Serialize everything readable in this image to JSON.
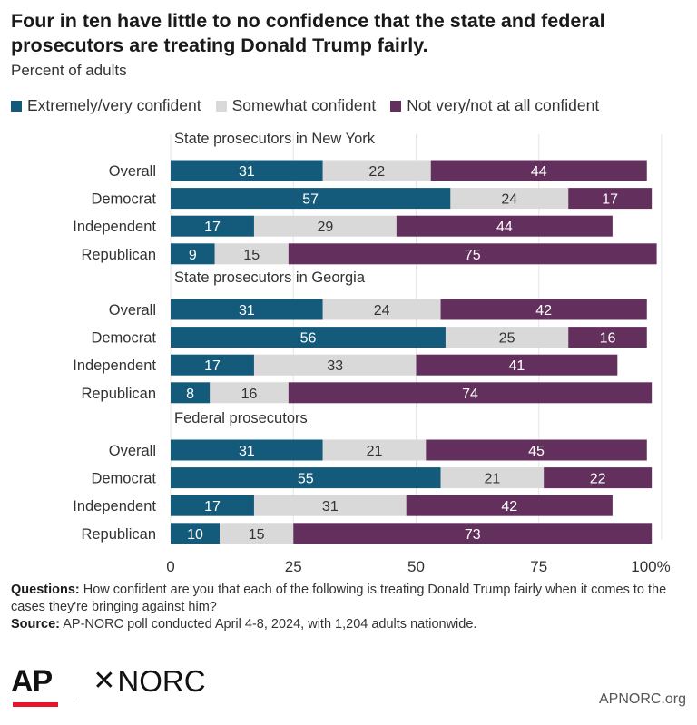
{
  "title": "Four in ten have little to no confidence that the state and federal prosecutors are treating Donald Trump fairly.",
  "subtitle": "Percent of adults",
  "colors": {
    "extremely": "#145a7a",
    "somewhat": "#d9d9d9",
    "not": "#63305e"
  },
  "legend": [
    {
      "label": "Extremely/very confident",
      "color": "#145a7a",
      "icon": "square-swatch"
    },
    {
      "label": "Somewhat confident",
      "color": "#d9d9d9",
      "icon": "square-swatch"
    },
    {
      "label": "Not very/not at all confident",
      "color": "#63305e",
      "icon": "square-swatch"
    }
  ],
  "chart_data": {
    "type": "bar",
    "orientation": "horizontal",
    "stacked": true,
    "xlim": [
      0,
      100
    ],
    "xticks": [
      "0",
      "25",
      "50",
      "75",
      "100%"
    ],
    "series_names": [
      "Extremely/very confident",
      "Somewhat confident",
      "Not very/not at all confident"
    ],
    "groups": [
      {
        "label": "State prosecutors in New York",
        "rows": [
          {
            "label": "Overall",
            "values": [
              31,
              22,
              44
            ]
          },
          {
            "label": "Democrat",
            "values": [
              57,
              24,
              17
            ]
          },
          {
            "label": "Independent",
            "values": [
              17,
              29,
              44
            ]
          },
          {
            "label": "Republican",
            "values": [
              9,
              15,
              75
            ]
          }
        ]
      },
      {
        "label": "State prosecutors in Georgia",
        "rows": [
          {
            "label": "Overall",
            "values": [
              31,
              24,
              42
            ]
          },
          {
            "label": "Democrat",
            "values": [
              56,
              25,
              16
            ]
          },
          {
            "label": "Independent",
            "values": [
              17,
              33,
              41
            ]
          },
          {
            "label": "Republican",
            "values": [
              8,
              16,
              74
            ]
          }
        ]
      },
      {
        "label": "Federal prosecutors",
        "rows": [
          {
            "label": "Overall",
            "values": [
              31,
              21,
              45
            ]
          },
          {
            "label": "Democrat",
            "values": [
              55,
              21,
              22
            ]
          },
          {
            "label": "Independent",
            "values": [
              17,
              31,
              42
            ]
          },
          {
            "label": "Republican",
            "values": [
              10,
              15,
              73
            ]
          }
        ]
      }
    ]
  },
  "notes": {
    "questions_label": "Questions:",
    "questions_text": "How confident are you that each of the following is treating Donald Trump fairly when it comes to the cases they're bringing against him?",
    "source_label": "Source:",
    "source_text": "AP-NORC poll conducted April 4-8, 2024, with 1,204 adults nationwide."
  },
  "footer": {
    "ap_logo": "AP",
    "norc_logo": "NORC",
    "norc_symbol": "✕",
    "site": "APNORC.org"
  }
}
